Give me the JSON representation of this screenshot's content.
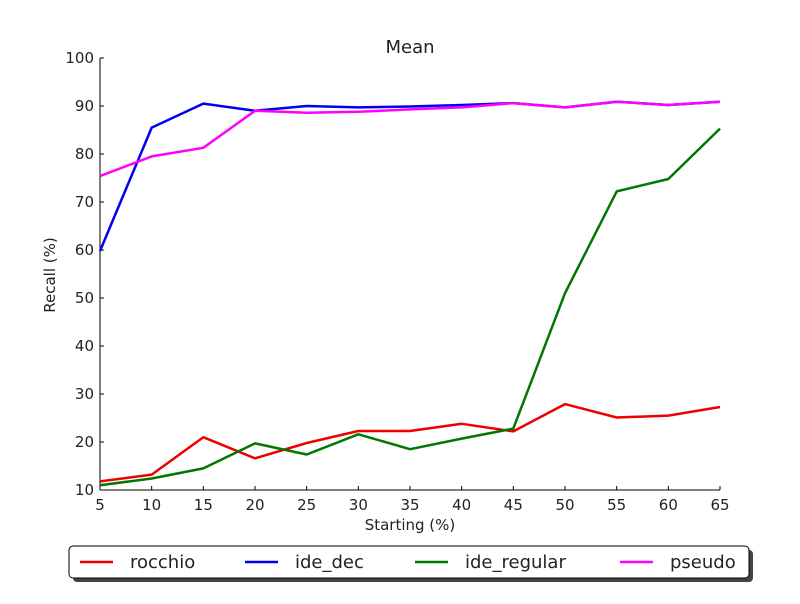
{
  "chart_data": {
    "type": "line",
    "title": "Mean",
    "xlabel": "Starting (%)",
    "ylabel": "Recall (%)",
    "x": [
      5,
      10,
      15,
      20,
      25,
      30,
      35,
      40,
      45,
      50,
      55,
      60,
      65
    ],
    "xlim": [
      5,
      65
    ],
    "ylim": [
      10,
      100
    ],
    "xticks": [
      5,
      10,
      15,
      20,
      25,
      30,
      35,
      40,
      45,
      50,
      55,
      60,
      65
    ],
    "yticks": [
      10,
      20,
      30,
      40,
      50,
      60,
      70,
      80,
      90,
      100
    ],
    "grid": false,
    "legend_position": "bottom",
    "series": [
      {
        "name": "rocchio",
        "color": "#ee0000",
        "values": [
          11.8,
          13.2,
          21.0,
          16.6,
          19.8,
          22.3,
          22.3,
          23.8,
          22.2,
          27.9,
          25.1,
          25.5,
          27.3
        ]
      },
      {
        "name": "ide_dec",
        "color": "#0000ee",
        "values": [
          59.8,
          85.5,
          90.5,
          89.0,
          90.0,
          89.7,
          89.9,
          90.2,
          90.6,
          89.7,
          90.9,
          90.2,
          90.9
        ]
      },
      {
        "name": "ide_regular",
        "color": "#007700",
        "values": [
          11.0,
          12.4,
          14.5,
          19.7,
          17.4,
          21.6,
          18.5,
          20.7,
          22.8,
          51.0,
          72.2,
          74.8,
          85.3
        ]
      },
      {
        "name": "pseudo",
        "color": "#ff00ff",
        "values": [
          75.4,
          79.5,
          81.3,
          89.0,
          88.6,
          88.8,
          89.3,
          89.7,
          90.6,
          89.7,
          90.9,
          90.2,
          90.9
        ]
      }
    ]
  }
}
